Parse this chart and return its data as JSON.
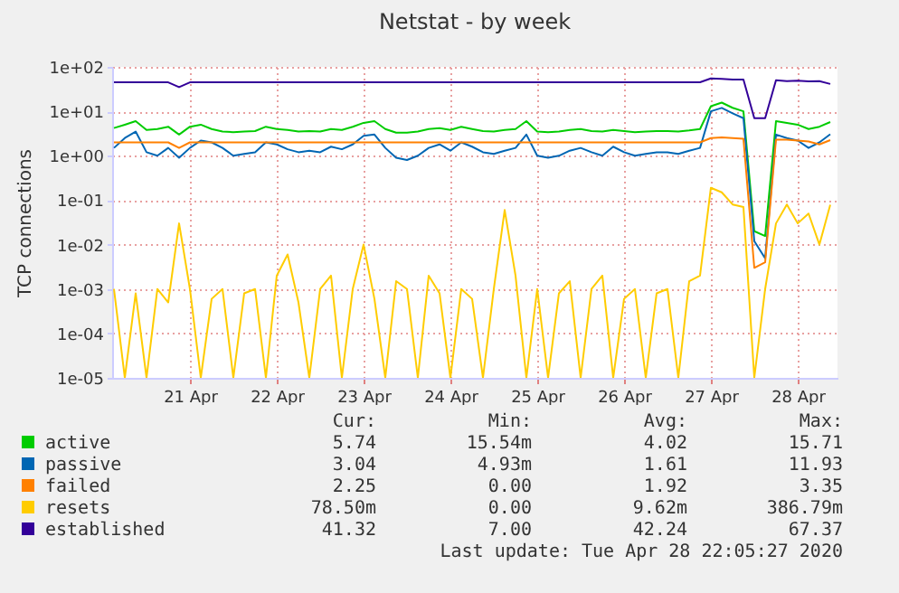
{
  "chart_data": {
    "type": "line",
    "title": "Netstat - by week",
    "ylabel": "TCP connections",
    "log": "y",
    "grid": true,
    "legend": "bottom",
    "xlim": [
      "2020-04-20T14:30",
      "2020-04-28T23:00"
    ],
    "xticks": [
      {
        "value": "2020-04-21T12:00",
        "label": "21 Apr"
      },
      {
        "value": "2020-04-22T12:00",
        "label": "22 Apr"
      },
      {
        "value": "2020-04-23T12:00",
        "label": "23 Apr"
      },
      {
        "value": "2020-04-24T12:00",
        "label": "24 Apr"
      },
      {
        "value": "2020-04-25T12:00",
        "label": "25 Apr"
      },
      {
        "value": "2020-04-26T12:00",
        "label": "26 Apr"
      },
      {
        "value": "2020-04-27T12:00",
        "label": "27 Apr"
      },
      {
        "value": "2020-04-28T12:00",
        "label": "28 Apr"
      }
    ],
    "ylim": [
      1e-05,
      100
    ],
    "yticks": [
      {
        "value": 1e-05,
        "label": "1e-05"
      },
      {
        "value": 0.0001,
        "label": "1e-04"
      },
      {
        "value": 0.001,
        "label": "1e-03"
      },
      {
        "value": 0.01,
        "label": "1e-02"
      },
      {
        "value": 0.1,
        "label": "1e-01"
      },
      {
        "value": 1,
        "label": "1e+00"
      },
      {
        "value": 10,
        "label": "1e+01"
      },
      {
        "value": 100,
        "label": "1e+02"
      }
    ],
    "x": [
      "2020-04-20T15:00",
      "2020-04-20T18:00",
      "2020-04-20T21:00",
      "2020-04-21T00:00",
      "2020-04-21T03:00",
      "2020-04-21T06:00",
      "2020-04-21T09:00",
      "2020-04-21T12:00",
      "2020-04-21T15:00",
      "2020-04-21T18:00",
      "2020-04-21T21:00",
      "2020-04-22T00:00",
      "2020-04-22T03:00",
      "2020-04-22T06:00",
      "2020-04-22T09:00",
      "2020-04-22T12:00",
      "2020-04-22T15:00",
      "2020-04-22T18:00",
      "2020-04-22T21:00",
      "2020-04-23T00:00",
      "2020-04-23T03:00",
      "2020-04-23T06:00",
      "2020-04-23T09:00",
      "2020-04-23T12:00",
      "2020-04-23T15:00",
      "2020-04-23T18:00",
      "2020-04-23T21:00",
      "2020-04-24T00:00",
      "2020-04-24T03:00",
      "2020-04-24T06:00",
      "2020-04-24T09:00",
      "2020-04-24T12:00",
      "2020-04-24T15:00",
      "2020-04-24T18:00",
      "2020-04-24T21:00",
      "2020-04-25T00:00",
      "2020-04-25T03:00",
      "2020-04-25T06:00",
      "2020-04-25T09:00",
      "2020-04-25T12:00",
      "2020-04-25T15:00",
      "2020-04-25T18:00",
      "2020-04-25T21:00",
      "2020-04-26T00:00",
      "2020-04-26T03:00",
      "2020-04-26T06:00",
      "2020-04-26T09:00",
      "2020-04-26T12:00",
      "2020-04-26T15:00",
      "2020-04-26T18:00",
      "2020-04-26T21:00",
      "2020-04-27T00:00",
      "2020-04-27T03:00",
      "2020-04-27T06:00",
      "2020-04-27T09:00",
      "2020-04-27T12:00",
      "2020-04-27T15:00",
      "2020-04-27T18:00",
      "2020-04-27T21:00",
      "2020-04-28T00:00",
      "2020-04-28T03:00",
      "2020-04-28T06:00",
      "2020-04-28T09:00",
      "2020-04-28T12:00",
      "2020-04-28T15:00",
      "2020-04-28T18:00",
      "2020-04-28T21:00"
    ],
    "series": [
      {
        "name": "active",
        "color": "#00cc00",
        "values": [
          4.2,
          5,
          6,
          3.8,
          4,
          4.5,
          3,
          4.5,
          5,
          4,
          3.5,
          3.4,
          3.5,
          3.6,
          4.5,
          4,
          3.8,
          3.5,
          3.6,
          3.5,
          4,
          3.8,
          4.5,
          5.5,
          6,
          4,
          3.3,
          3.3,
          3.5,
          4,
          4.2,
          3.8,
          4.5,
          4,
          3.6,
          3.5,
          3.8,
          4,
          6,
          3.5,
          3.4,
          3.5,
          3.8,
          4,
          3.6,
          3.5,
          3.8,
          3.6,
          3.4,
          3.5,
          3.6,
          3.6,
          3.5,
          3.7,
          4,
          13,
          15.71,
          12,
          10,
          0.02,
          0.01554,
          6,
          5.5,
          5,
          4,
          4.5,
          5.74
        ]
      },
      {
        "name": "passive",
        "color": "#0066b3",
        "values": [
          1.5,
          2.5,
          3.5,
          1.2,
          1,
          1.5,
          0.9,
          1.5,
          2.2,
          2,
          1.5,
          1,
          1.1,
          1.2,
          2,
          1.8,
          1.4,
          1.2,
          1.3,
          1.2,
          1.6,
          1.4,
          1.8,
          2.8,
          3,
          1.5,
          0.9,
          0.8,
          1,
          1.5,
          1.8,
          1.3,
          2,
          1.6,
          1.2,
          1.1,
          1.3,
          1.5,
          3,
          1,
          0.9,
          1,
          1.3,
          1.5,
          1.2,
          1,
          1.6,
          1.2,
          1,
          1.1,
          1.2,
          1.2,
          1.1,
          1.3,
          1.5,
          10,
          11.93,
          9,
          7,
          0.012,
          0.00493,
          3,
          2.5,
          2.2,
          1.5,
          2,
          3.04
        ]
      },
      {
        "name": "failed",
        "color": "#ff8000",
        "values": [
          2,
          2,
          2,
          2,
          2,
          2,
          1.5,
          2,
          2,
          2,
          2,
          2,
          2,
          2,
          2,
          2,
          2,
          2,
          2,
          2,
          2,
          2,
          2,
          2,
          2,
          2,
          2,
          2,
          2,
          2,
          2,
          2,
          2,
          2,
          2,
          2,
          2,
          2,
          2,
          2,
          2,
          2,
          2,
          2,
          2,
          2,
          2,
          2,
          2,
          2,
          2,
          2,
          2,
          2,
          2,
          2.5,
          2.6,
          2.5,
          2.4,
          0.003,
          0.004,
          2.3,
          2.3,
          2.2,
          2.1,
          1.8,
          2.25
        ]
      },
      {
        "name": "resets",
        "color": "#ffcc00",
        "values": [
          0.001,
          1e-05,
          0.0008,
          1e-05,
          0.001,
          0.0005,
          0.03,
          0.001,
          1e-05,
          0.0006,
          0.001,
          1e-05,
          0.0008,
          0.001,
          1e-05,
          0.002,
          0.006,
          0.0005,
          1e-05,
          0.001,
          0.002,
          1e-05,
          0.001,
          0.01,
          0.0006,
          1e-05,
          0.0015,
          0.001,
          1e-05,
          0.002,
          0.0008,
          1e-05,
          0.001,
          0.0006,
          1e-05,
          0.001,
          0.06,
          0.002,
          1e-05,
          0.001,
          1e-05,
          0.0008,
          0.0015,
          1e-05,
          0.001,
          0.002,
          1e-05,
          0.0006,
          0.001,
          1e-05,
          0.0008,
          0.001,
          1e-05,
          0.0015,
          0.002,
          0.19,
          0.15,
          0.08,
          0.07,
          1e-05,
          0.001,
          0.03,
          0.08,
          0.03,
          0.05,
          0.01,
          0.0785
        ]
      },
      {
        "name": "established",
        "color": "#330099",
        "values": [
          45,
          45,
          45,
          45,
          45,
          45,
          35,
          45,
          45,
          45,
          45,
          45,
          45,
          45,
          45,
          45,
          45,
          45,
          45,
          45,
          45,
          45,
          45,
          45,
          45,
          45,
          45,
          45,
          45,
          45,
          45,
          45,
          45,
          45,
          45,
          45,
          45,
          45,
          45,
          45,
          45,
          45,
          45,
          45,
          45,
          45,
          45,
          45,
          45,
          45,
          45,
          45,
          45,
          45,
          45,
          55,
          54,
          52,
          52,
          7,
          7,
          50,
          48,
          49,
          47,
          48,
          41.32
        ]
      }
    ],
    "annotations": [
      "Cur:",
      "Min:",
      "Avg:",
      "Max:",
      "5.74",
      "15.54m",
      "4.02",
      "15.71",
      "3.04",
      "4.93m",
      "1.61",
      "11.93",
      "2.25",
      "0.00",
      "1.92",
      "3.35",
      "78.50m",
      "0.00",
      "9.62m",
      "386.79m",
      "41.32",
      "7.00",
      "42.24",
      "67.37",
      "Last update: Tue Apr 28 22:05:27 2020"
    ]
  }
}
